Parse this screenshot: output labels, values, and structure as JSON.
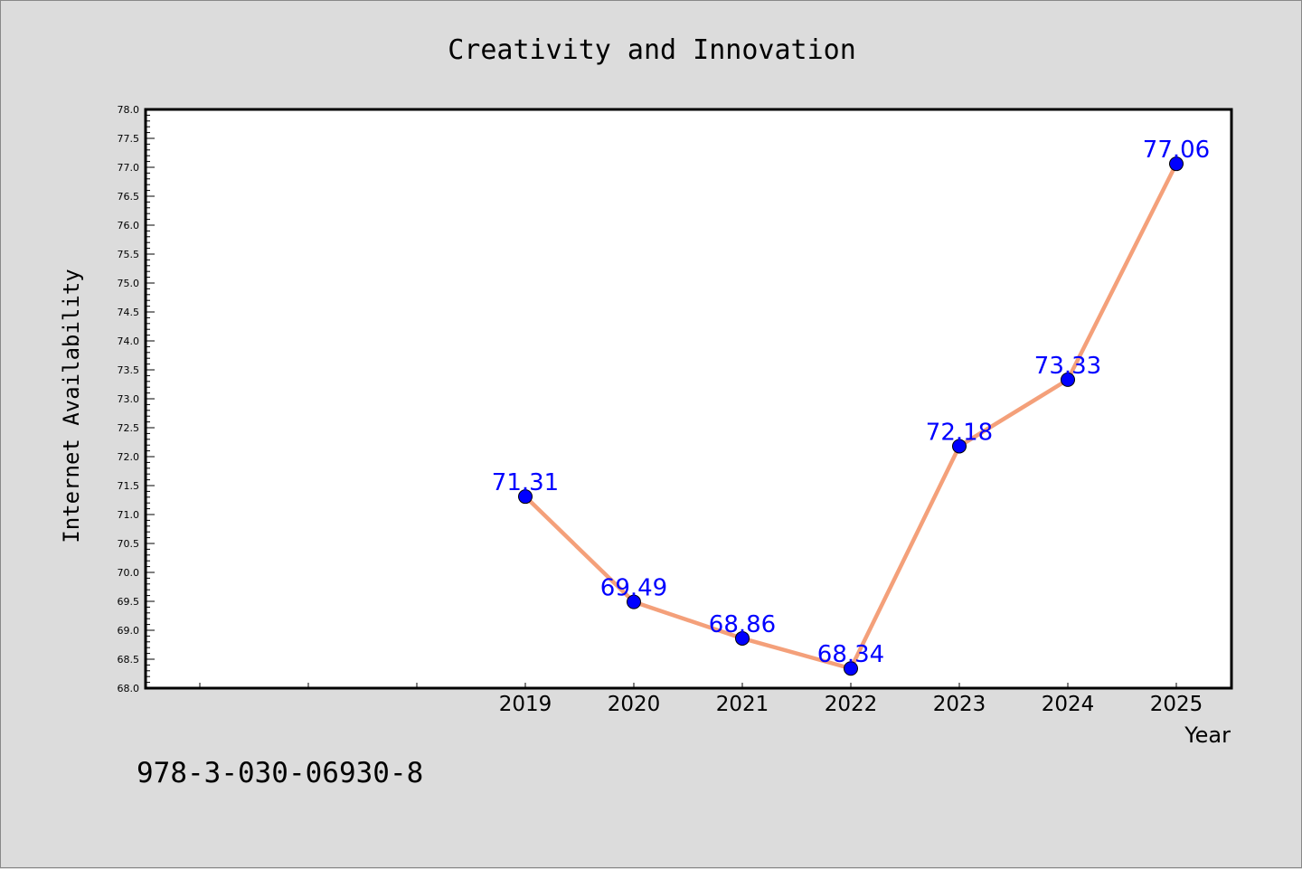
{
  "footer_text": "978-3-030-06930-8",
  "colors": {
    "background": "#dcdcdc",
    "plot_background": "#ffffff",
    "line": "#f4a07a",
    "marker": "#0000ff",
    "data_label": "#0000ff"
  },
  "chart_data": {
    "type": "line",
    "title": "Creativity and Innovation",
    "xlabel": "Year",
    "ylabel": "Internet Availability",
    "ylim": [
      68.0,
      78.0
    ],
    "yticks": [
      "68.0",
      "68.5",
      "69.0",
      "69.5",
      "70.0",
      "70.5",
      "71.0",
      "71.5",
      "72.0",
      "72.5",
      "73.0",
      "73.5",
      "74.0",
      "74.5",
      "75.0",
      "75.5",
      "76.0",
      "76.5",
      "77.0",
      "77.5",
      "78.0"
    ],
    "grid": false,
    "x": [
      "2019",
      "2020",
      "2021",
      "2022",
      "2023",
      "2024",
      "2025"
    ],
    "values": [
      71.31,
      69.49,
      68.86,
      68.34,
      72.18,
      73.33,
      77.06
    ],
    "data_labels": [
      "71.31",
      "69.49",
      "68.86",
      "68.34",
      "72.18",
      "73.33",
      "77.06"
    ]
  }
}
